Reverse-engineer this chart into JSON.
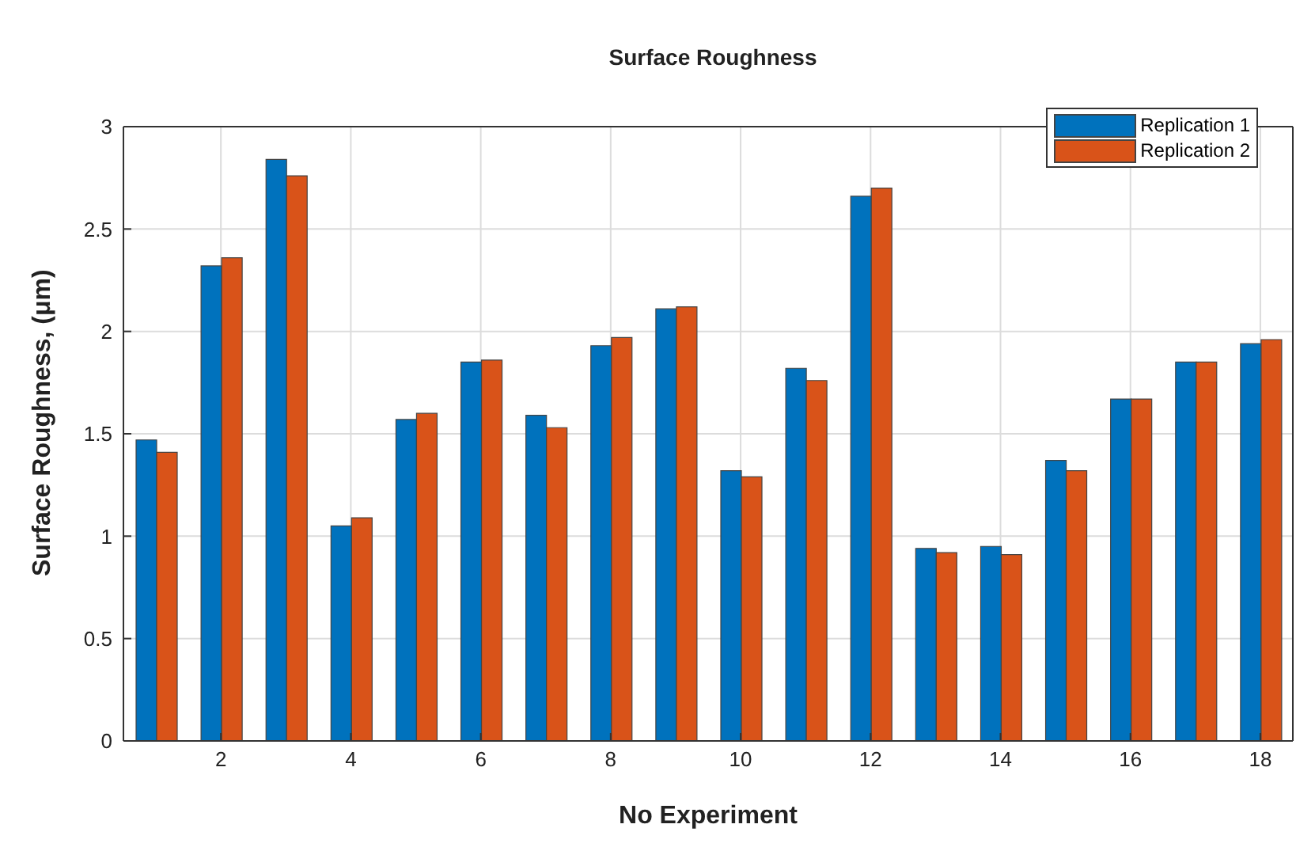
{
  "chart_data": {
    "type": "bar",
    "title": "Surface Roughness",
    "xlabel": "No Experiment",
    "ylabel": "Surface Roughness, (μm)",
    "x": [
      1,
      2,
      3,
      4,
      5,
      6,
      7,
      8,
      9,
      10,
      11,
      12,
      13,
      14,
      15,
      16,
      17,
      18
    ],
    "xlim": [
      0.5,
      18.5
    ],
    "xticks": [
      2,
      4,
      6,
      8,
      10,
      12,
      14,
      16,
      18
    ],
    "ylim": [
      0,
      3
    ],
    "yticks": [
      0,
      0.5,
      1,
      1.5,
      2,
      2.5,
      3
    ],
    "series": [
      {
        "name": "Replication 1",
        "color": "#0072bd",
        "values": [
          1.47,
          2.32,
          2.84,
          1.05,
          1.57,
          1.85,
          1.59,
          1.93,
          2.11,
          1.32,
          1.82,
          2.66,
          0.94,
          0.95,
          1.37,
          1.67,
          1.85,
          1.94
        ]
      },
      {
        "name": "Replication 2",
        "color": "#d95319",
        "values": [
          1.41,
          2.36,
          2.76,
          1.09,
          1.6,
          1.86,
          1.53,
          1.97,
          2.12,
          1.29,
          1.76,
          2.7,
          0.92,
          0.91,
          1.32,
          1.67,
          1.85,
          1.96
        ]
      }
    ],
    "grid": true,
    "legend": "top right"
  }
}
